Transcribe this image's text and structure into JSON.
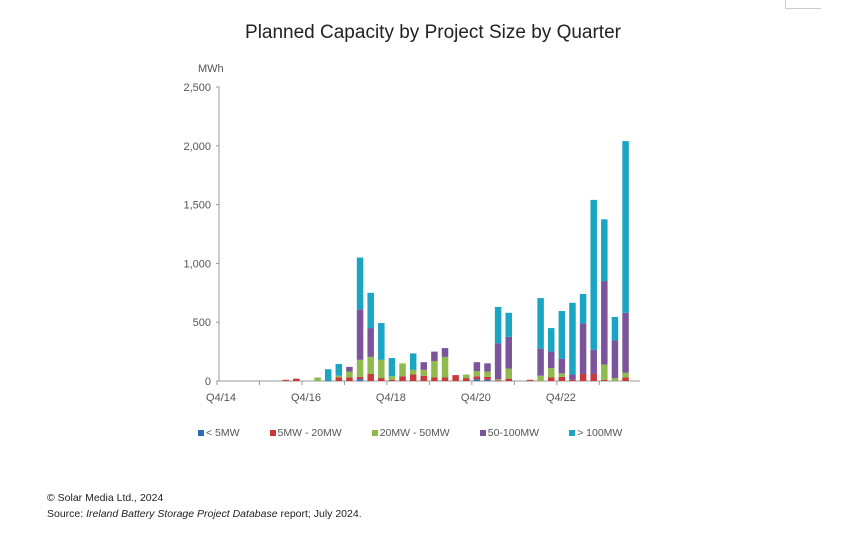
{
  "chart_data": {
    "type": "bar",
    "stacked": true,
    "title": "Planned Capacity by Project Size by Quarter",
    "ylabel": "MWh",
    "xlabel": "",
    "ylim": [
      0,
      2500
    ],
    "yticks": [
      0,
      500,
      1000,
      1500,
      2000,
      2500
    ],
    "ytick_labels": [
      "0",
      "500",
      "1,000",
      "1,500",
      "2,000",
      "2,500"
    ],
    "xtick_labels": [
      "Q4/14",
      "Q4/16",
      "Q4/18",
      "Q4/20",
      "Q4/22"
    ],
    "grid": false,
    "legend_position": "bottom",
    "categories": [
      "Q4/14",
      "Q1/15",
      "Q2/15",
      "Q3/15",
      "Q4/15",
      "Q1/16",
      "Q2/16",
      "Q3/16",
      "Q4/16",
      "Q1/17",
      "Q2/17",
      "Q3/17",
      "Q4/17",
      "Q1/18",
      "Q2/18",
      "Q3/18",
      "Q4/18",
      "Q1/19",
      "Q2/19",
      "Q3/19",
      "Q4/19",
      "Q1/20",
      "Q2/20",
      "Q3/20",
      "Q4/20",
      "Q1/21",
      "Q2/21",
      "Q3/21",
      "Q4/21",
      "Q1/22",
      "Q2/22",
      "Q3/22",
      "Q4/22",
      "Q1/23",
      "Q2/23",
      "Q3/23",
      "Q4/23",
      "Q1/24",
      "Q2/24"
    ],
    "series": [
      {
        "name": "< 5MW",
        "color": "#2e6db4",
        "values": [
          0,
          0,
          0,
          0,
          0,
          0,
          0,
          0,
          0,
          0,
          5,
          0,
          0,
          15,
          0,
          0,
          0,
          0,
          0,
          0,
          0,
          0,
          0,
          0,
          15,
          10,
          0,
          0,
          0,
          0,
          0,
          0,
          0,
          0,
          0,
          0,
          0,
          0,
          0
        ]
      },
      {
        "name": "5MW - 20MW",
        "color": "#c9393b",
        "values": [
          0,
          0,
          0,
          0,
          0,
          0,
          10,
          20,
          0,
          0,
          0,
          30,
          30,
          20,
          60,
          25,
          10,
          40,
          55,
          45,
          30,
          30,
          50,
          25,
          25,
          25,
          5,
          20,
          0,
          10,
          0,
          30,
          35,
          10,
          60,
          60,
          10,
          0,
          30
        ]
      },
      {
        "name": "20MW - 50MW",
        "color": "#8fba4e",
        "values": [
          0,
          0,
          0,
          0,
          0,
          0,
          0,
          0,
          0,
          30,
          0,
          15,
          50,
          145,
          145,
          155,
          30,
          110,
          40,
          50,
          140,
          175,
          0,
          30,
          45,
          45,
          10,
          85,
          0,
          0,
          45,
          80,
          30,
          0,
          0,
          0,
          130,
          25,
          40
        ]
      },
      {
        "name": "50-100MW",
        "color": "#7a559c",
        "values": [
          0,
          0,
          0,
          0,
          0,
          0,
          0,
          0,
          0,
          0,
          0,
          0,
          40,
          430,
          245,
          0,
          0,
          0,
          0,
          65,
          80,
          75,
          0,
          0,
          75,
          70,
          305,
          270,
          0,
          0,
          230,
          140,
          125,
          45,
          430,
          205,
          710,
          320,
          510
        ]
      },
      {
        "name": "> 100MW",
        "color": "#1aa6c3",
        "values": [
          0,
          0,
          0,
          0,
          0,
          0,
          0,
          0,
          0,
          0,
          95,
          100,
          0,
          440,
          300,
          313,
          155,
          0,
          140,
          0,
          0,
          0,
          0,
          0,
          0,
          0,
          310,
          205,
          0,
          0,
          430,
          200,
          405,
          610,
          250,
          1275,
          525,
          200,
          1460
        ]
      }
    ]
  },
  "footer": {
    "copyright": "© Solar Media Ltd., 2024",
    "source_prefix": "Source: ",
    "source_title": "Ireland Battery Storage Project Database",
    "source_suffix": " report; July 2024."
  }
}
